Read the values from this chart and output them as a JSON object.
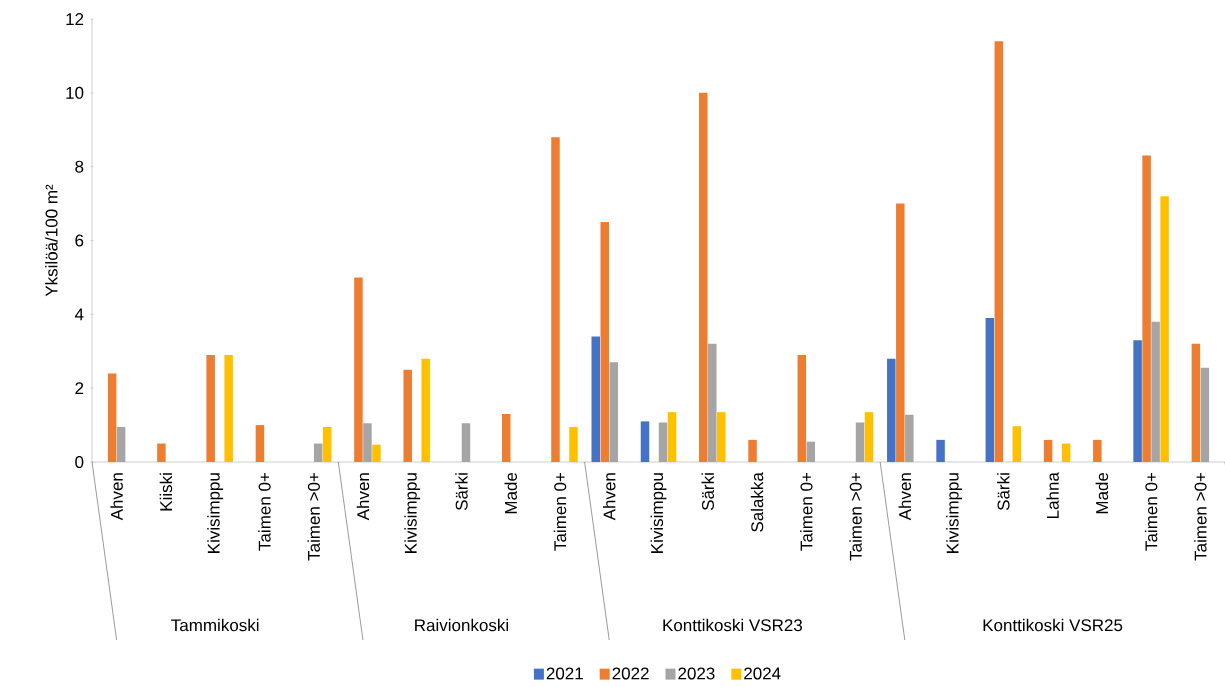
{
  "chart_data": {
    "type": "bar",
    "ylabel": "Yksilöä/100 m²",
    "categories": [
      "Ahven",
      "Kiiski",
      "Kivisimppu",
      "Taimen 0+",
      "Taimen >0+",
      "Ahven",
      "Kivisimppu",
      "Särki",
      "Made",
      "Taimen 0+",
      "Ahven",
      "Kivisimppu",
      "Särki",
      "Salakka",
      "Taimen 0+",
      "Taimen >0+",
      "Ahven",
      "Kivisimppu",
      "Särki",
      "Lahna",
      "Made",
      "Taimen 0+",
      "Taimen >0+"
    ],
    "series": [
      {
        "name": "2021",
        "color": "#4472c4",
        "values": [
          null,
          null,
          null,
          null,
          null,
          null,
          null,
          null,
          null,
          null,
          3.4,
          1.1,
          null,
          null,
          null,
          null,
          2.8,
          0.6,
          3.9,
          null,
          null,
          3.3,
          null
        ]
      },
      {
        "name": "2022",
        "color": "#ed7d31",
        "values": [
          2.4,
          0.5,
          2.9,
          1.0,
          null,
          5.0,
          2.5,
          null,
          1.3,
          8.8,
          6.5,
          null,
          10.0,
          0.6,
          2.9,
          null,
          7.0,
          null,
          11.4,
          0.6,
          0.6,
          8.3,
          3.2
        ]
      },
      {
        "name": "2023",
        "color": "#a5a5a5",
        "values": [
          0.95,
          null,
          null,
          null,
          0.5,
          1.05,
          null,
          1.05,
          null,
          null,
          2.7,
          1.07,
          3.2,
          null,
          0.55,
          1.07,
          1.28,
          null,
          null,
          null,
          null,
          3.8,
          2.55
        ]
      },
      {
        "name": "2024",
        "color": "#ffc000",
        "values": [
          null,
          null,
          2.9,
          null,
          0.95,
          0.47,
          2.8,
          null,
          null,
          0.95,
          null,
          1.35,
          1.35,
          null,
          null,
          1.35,
          null,
          null,
          0.97,
          0.5,
          null,
          7.2,
          null
        ]
      }
    ],
    "ylim": [
      0,
      12
    ],
    "yticks": [
      0,
      2,
      4,
      6,
      8,
      10,
      12
    ],
    "legend": "bottom",
    "annotations": [
      "Tammikoski",
      "Raivionkoski",
      "Konttikoski VSR23",
      "Konttikoski VSR25"
    ]
  }
}
